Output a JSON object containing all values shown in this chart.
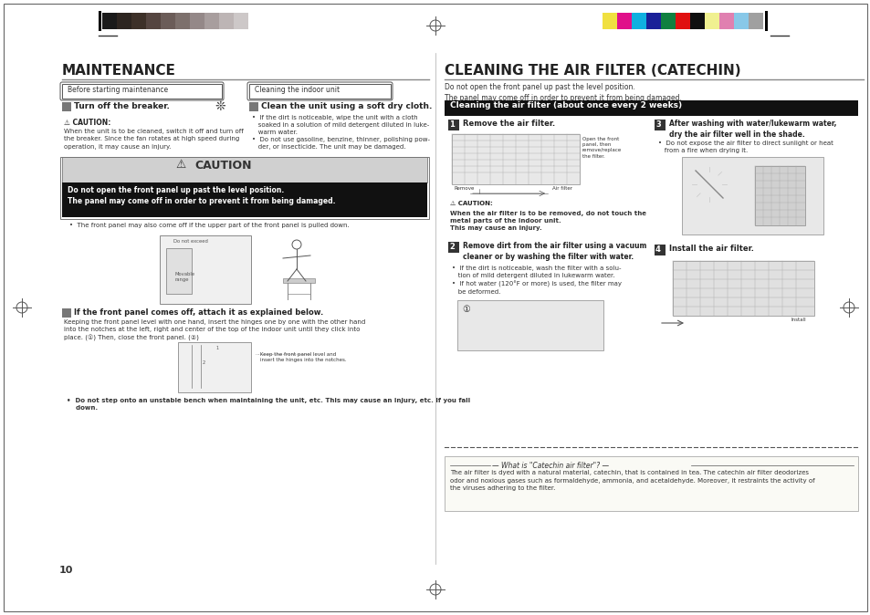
{
  "page_bg": "#ffffff",
  "left_title": "MAINTENANCE",
  "right_title": "CLEANING THE AIR FILTER (CATECHIN)",
  "page_number": "10",
  "grayscale_colors": [
    "#1a1a1a",
    "#2d2520",
    "#3d3028",
    "#554540",
    "#6b5c58",
    "#7d706c",
    "#948888",
    "#a89e9e",
    "#bdb5b5",
    "#cdc8c8"
  ],
  "color_swatches": [
    "#f0e040",
    "#e0108a",
    "#10b0e0",
    "#1a2098",
    "#108040",
    "#e01010",
    "#101010",
    "#f0f090",
    "#e080b0",
    "#88c8e8",
    "#a0a0a0"
  ],
  "crosshair_color": "#555555",
  "dark_box_color": "#1a1a1a",
  "green_bar_color": "#1a1a1a",
  "caution_bg": "#d8d8d8",
  "step_box_color": "#555555"
}
